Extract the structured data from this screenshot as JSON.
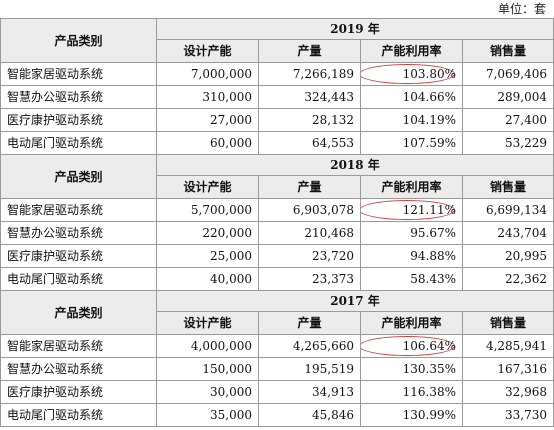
{
  "unit_label": "单位：套",
  "row_header_label": "产品类别",
  "column_labels": [
    "设计产能",
    "产量",
    "产能利用率",
    "销售量"
  ],
  "blocks": [
    {
      "year": "2019 年",
      "rows": [
        {
          "category": "智能家居驱动系统",
          "capacity": "7,000,000",
          "output": "7,266,189",
          "utilization": "103.80%",
          "sales": "7,069,406",
          "circled": true
        },
        {
          "category": "智慧办公驱动系统",
          "capacity": "310,000",
          "output": "324,443",
          "utilization": "104.66%",
          "sales": "289,004",
          "circled": false
        },
        {
          "category": "医疗康护驱动系统",
          "capacity": "27,000",
          "output": "28,132",
          "utilization": "104.19%",
          "sales": "27,400",
          "circled": false
        },
        {
          "category": "电动尾门驱动系统",
          "capacity": "60,000",
          "output": "64,553",
          "utilization": "107.59%",
          "sales": "53,229",
          "circled": false
        }
      ]
    },
    {
      "year": "2018 年",
      "rows": [
        {
          "category": "智能家居驱动系统",
          "capacity": "5,700,000",
          "output": "6,903,078",
          "utilization": "121.11%",
          "sales": "6,699,134",
          "circled": true
        },
        {
          "category": "智慧办公驱动系统",
          "capacity": "220,000",
          "output": "210,468",
          "utilization": "95.67%",
          "sales": "243,704",
          "circled": false
        },
        {
          "category": "医疗康护驱动系统",
          "capacity": "25,000",
          "output": "23,720",
          "utilization": "94.88%",
          "sales": "20,995",
          "circled": false
        },
        {
          "category": "电动尾门驱动系统",
          "capacity": "40,000",
          "output": "23,373",
          "utilization": "58.43%",
          "sales": "22,362",
          "circled": false
        }
      ]
    },
    {
      "year": "2017 年",
      "rows": [
        {
          "category": "智能家居驱动系统",
          "capacity": "4,000,000",
          "output": "4,265,660",
          "utilization": "106.64%",
          "sales": "4,285,941",
          "circled": true
        },
        {
          "category": "智慧办公驱动系统",
          "capacity": "150,000",
          "output": "195,519",
          "utilization": "130.35%",
          "sales": "167,316",
          "circled": false
        },
        {
          "category": "医疗康护驱动系统",
          "capacity": "30,000",
          "output": "34,913",
          "utilization": "116.38%",
          "sales": "32,968",
          "circled": false
        },
        {
          "category": "电动尾门驱动系统",
          "capacity": "35,000",
          "output": "45,846",
          "utilization": "130.99%",
          "sales": "33,730",
          "circled": false
        }
      ]
    }
  ],
  "highlight_color": "#d23b3b"
}
